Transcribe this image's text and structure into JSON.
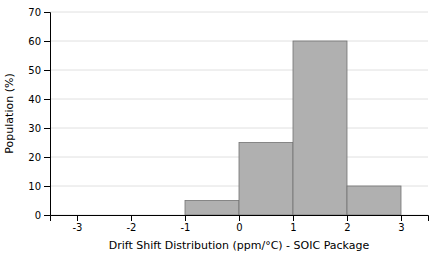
{
  "chart_data": {
    "type": "histogram",
    "bins": [
      -1,
      0,
      1,
      2,
      3
    ],
    "values": [
      5,
      25,
      60,
      10
    ],
    "color": "#b0b0b0",
    "xlim": [
      -3.5,
      3.5
    ],
    "xticks": [
      -3,
      -2,
      -1,
      0,
      1,
      2,
      3
    ],
    "ylim": [
      0,
      70
    ],
    "yticks": [
      0,
      10,
      20,
      30,
      40,
      50,
      60,
      70
    ],
    "xlabel": "Drift Shift Distribution (ppm/°C) - SOIC Package",
    "ylabel": "Population (%)",
    "grid": "y"
  }
}
